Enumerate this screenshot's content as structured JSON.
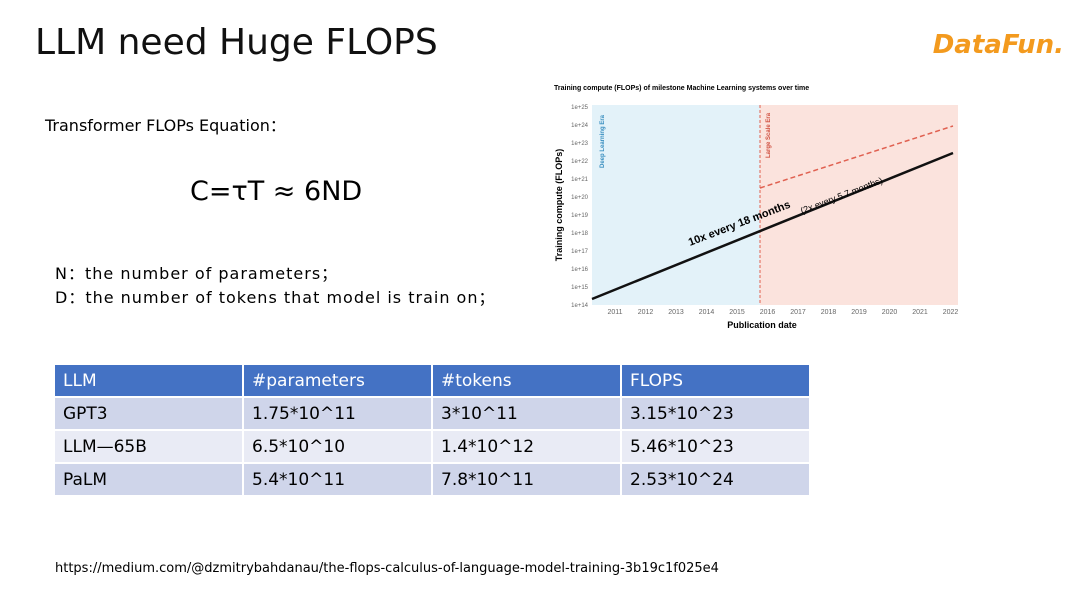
{
  "header": {
    "title": "LLM need Huge FLOPS",
    "logo": "DataFun."
  },
  "equation": {
    "heading": "Transformer FLOPs Equation：",
    "formula": "C=τT ≈ 6ND",
    "definitions": [
      "N：the number of parameters；",
      "D：the number of tokens that model is train on；"
    ]
  },
  "figure": {
    "title": "Training compute (FLOPs) of milestone Machine Learning systems over time",
    "y_label": "Training compute (FLOPs)",
    "x_label": "Publication date",
    "yticks": [
      "1e+25",
      "1e+24",
      "1e+23",
      "1e+22",
      "1e+21",
      "1e+20",
      "1e+19",
      "1e+18",
      "1e+17",
      "1e+16",
      "1e+15",
      "1e+14"
    ],
    "xticks": [
      "2011",
      "2012",
      "2013",
      "2014",
      "2015",
      "2016",
      "2017",
      "2018",
      "2019",
      "2020",
      "2021",
      "2022"
    ],
    "eras": [
      "Deep Learning Era",
      "Large Scale Era"
    ],
    "trend": "10x every 18 months",
    "trend_note": "(2x every 5.7 months)"
  },
  "table": {
    "header": [
      "LLM",
      "#parameters",
      "#tokens",
      "FLOPS"
    ],
    "rows": [
      [
        "GPT3",
        "1.75*10^11",
        "3*10^11",
        "3.15*10^23"
      ],
      [
        "LLM—65B",
        "6.5*10^10",
        "1.4*10^12",
        "5.46*10^23"
      ],
      [
        "PaLM",
        "5.4*10^11",
        "7.8*10^11",
        "2.53*10^24"
      ]
    ]
  },
  "footer": {
    "url": "https://medium.com/@dzmitrybahdanau/the-flops-calculus-of-language-model-training-3b19c1f025e4"
  }
}
